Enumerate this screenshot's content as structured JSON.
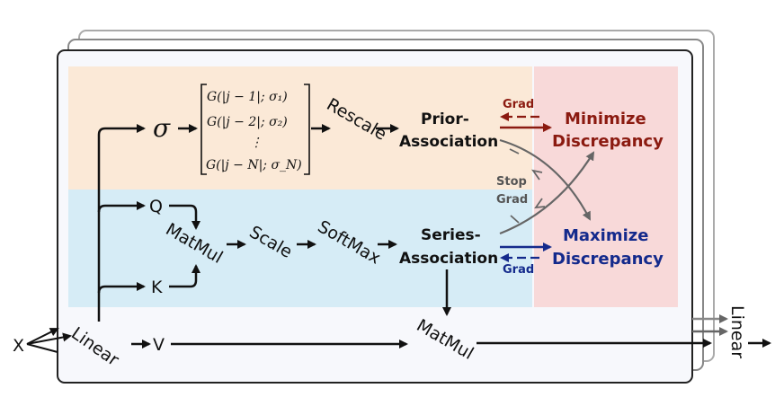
{
  "input_x": "X",
  "linear": "Linear",
  "linear_out": "Linear",
  "sigma": "σ",
  "q": "Q",
  "k": "K",
  "v": "V",
  "gaussians": [
    "G(|j − 1|; σ₁)",
    "G(|j − 2|; σ₂)",
    "⋮",
    "G(|j − N|; σ_N)"
  ],
  "rescale": "Rescale",
  "matmul_qk": "MatMul",
  "scale": "Scale",
  "softmax": "SoftMax",
  "matmul_v": "MatMul",
  "prior_association": [
    "Prior-",
    "Association"
  ],
  "series_association": [
    "Series-",
    "Association"
  ],
  "grad_top": "Grad",
  "grad_bottom": "Grad",
  "stop_grad": [
    "Stop",
    "Grad"
  ],
  "minimize": [
    "Minimize",
    "Discrepancy"
  ],
  "maximize": [
    "Maximize",
    "Discrepancy"
  ],
  "colors": {
    "prior_panel": "#fbe9d7",
    "series_panel": "#d6ecf6",
    "discrepancy_panel": "#f8d9d9",
    "red": "#8b1a10",
    "blue": "#142a8c",
    "gray_arrow": "#666666"
  }
}
